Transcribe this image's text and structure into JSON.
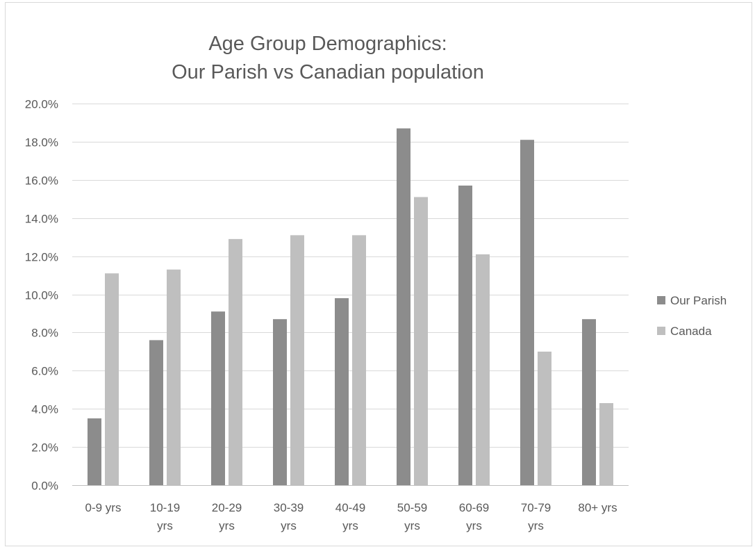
{
  "chart_data": {
    "type": "bar",
    "title_lines": [
      "Age Group Demographics:",
      "Our Parish vs Canadian population"
    ],
    "categories": [
      [
        "0-9 yrs"
      ],
      [
        "10-19",
        "yrs"
      ],
      [
        "20-29",
        "yrs"
      ],
      [
        "30-39",
        "yrs"
      ],
      [
        "40-49",
        "yrs"
      ],
      [
        "50-59",
        "yrs"
      ],
      [
        "60-69",
        "yrs"
      ],
      [
        "70-79",
        "yrs"
      ],
      [
        "80+ yrs"
      ]
    ],
    "series": [
      {
        "name": "Our Parish",
        "color": "#8c8c8c",
        "values": [
          3.5,
          7.6,
          9.1,
          8.7,
          9.8,
          18.7,
          15.7,
          18.1,
          8.7
        ]
      },
      {
        "name": "Canada",
        "color": "#bfbfbf",
        "values": [
          11.1,
          11.3,
          12.9,
          13.1,
          13.1,
          15.1,
          12.1,
          7.0,
          4.3
        ]
      }
    ],
    "ylim": [
      0,
      20
    ],
    "y_ticks": [
      "0.0%",
      "2.0%",
      "4.0%",
      "6.0%",
      "8.0%",
      "10.0%",
      "12.0%",
      "14.0%",
      "16.0%",
      "18.0%",
      "20.0%"
    ],
    "y_unit": "percent",
    "grid": true,
    "legend_position": "right"
  }
}
